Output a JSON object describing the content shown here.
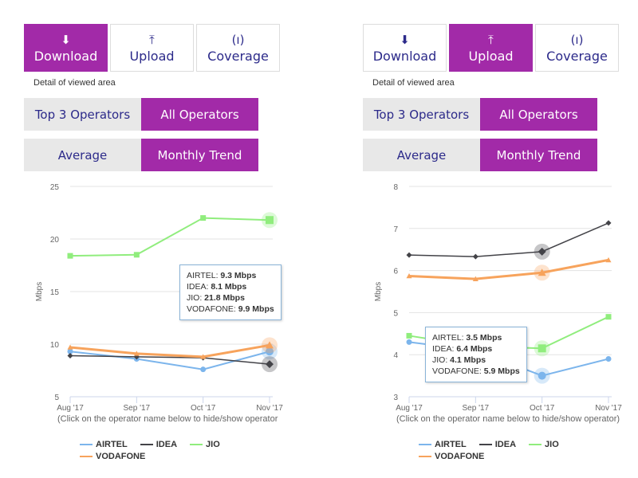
{
  "panels": [
    {
      "tabs": [
        {
          "label": "Download",
          "icon": "download-icon"
        },
        {
          "label": "Upload",
          "icon": "upload-icon"
        },
        {
          "label": "Coverage",
          "icon": "signal-icon"
        }
      ],
      "active_tab": 0,
      "detail_label": "Detail of viewed area",
      "operator_toggle": [
        "Top 3 Operators",
        "All Operators"
      ],
      "view_toggle": [
        "Average",
        "Monthly Trend"
      ],
      "tooltip": [
        {
          "name": "AIRTEL: ",
          "value": "9.3 Mbps"
        },
        {
          "name": "IDEA: ",
          "value": "8.1 Mbps"
        },
        {
          "name": "JIO: ",
          "value": "21.8 Mbps"
        },
        {
          "name": "VODAFONE: ",
          "value": "9.9 Mbps"
        }
      ],
      "note": "(Click on the operator name below to hide/show operator",
      "legend": [
        "AIRTEL",
        "IDEA",
        "JIO",
        "VODAFONE"
      ]
    },
    {
      "tabs": [
        {
          "label": "Download",
          "icon": "download-icon"
        },
        {
          "label": "Upload",
          "icon": "upload-icon"
        },
        {
          "label": "Coverage",
          "icon": "signal-icon"
        }
      ],
      "active_tab": 1,
      "detail_label": "Detail of viewed area",
      "operator_toggle": [
        "Top 3 Operators",
        "All Operators"
      ],
      "view_toggle": [
        "Average",
        "Monthly Trend"
      ],
      "tooltip": [
        {
          "name": "AIRTEL: ",
          "value": "3.5 Mbps"
        },
        {
          "name": "IDEA: ",
          "value": "6.4 Mbps"
        },
        {
          "name": "JIO: ",
          "value": "4.1 Mbps"
        },
        {
          "name": "VODAFONE: ",
          "value": "5.9 Mbps"
        }
      ],
      "note": "(Click on the operator name below to hide/show operator)",
      "legend": [
        "AIRTEL",
        "IDEA",
        "JIO",
        "VODAFONE"
      ]
    }
  ],
  "colors": {
    "accent": "#a22aa8",
    "AIRTEL": "#7cb5ec",
    "IDEA": "#434348",
    "JIO": "#90ed7d",
    "VODAFONE": "#f7a35c"
  },
  "chart_data": [
    {
      "type": "line",
      "title": "Download",
      "xlabel": "",
      "ylabel": "Mbps",
      "ylim": [
        5,
        25
      ],
      "yticks": [
        5,
        10,
        15,
        20,
        25
      ],
      "categories": [
        "Aug '17",
        "Sep '17",
        "Oct '17",
        "Nov '17"
      ],
      "highlight_index": 3,
      "series": [
        {
          "name": "AIRTEL",
          "values": [
            9.3,
            8.6,
            7.6,
            9.3
          ]
        },
        {
          "name": "IDEA",
          "values": [
            8.9,
            8.8,
            8.7,
            8.1
          ]
        },
        {
          "name": "JIO",
          "values": [
            18.4,
            18.5,
            22.0,
            21.8
          ]
        },
        {
          "name": "VODAFONE",
          "values": [
            9.7,
            9.1,
            8.8,
            9.9
          ]
        }
      ]
    },
    {
      "type": "line",
      "title": "Upload",
      "xlabel": "",
      "ylabel": "Mbps",
      "ylim": [
        3,
        8
      ],
      "yticks": [
        3,
        4,
        5,
        6,
        7,
        8
      ],
      "categories": [
        "Aug '17",
        "Sep '17",
        "Oct '17",
        "Nov '17"
      ],
      "highlight_index": 2,
      "series": [
        {
          "name": "AIRTEL",
          "values": [
            4.3,
            4.1,
            3.5,
            3.9
          ]
        },
        {
          "name": "IDEA",
          "values": [
            6.37,
            6.33,
            6.45,
            7.13
          ]
        },
        {
          "name": "JIO",
          "values": [
            4.45,
            4.2,
            4.15,
            4.9
          ]
        },
        {
          "name": "VODAFONE",
          "values": [
            5.87,
            5.8,
            5.95,
            6.25
          ]
        }
      ]
    }
  ]
}
